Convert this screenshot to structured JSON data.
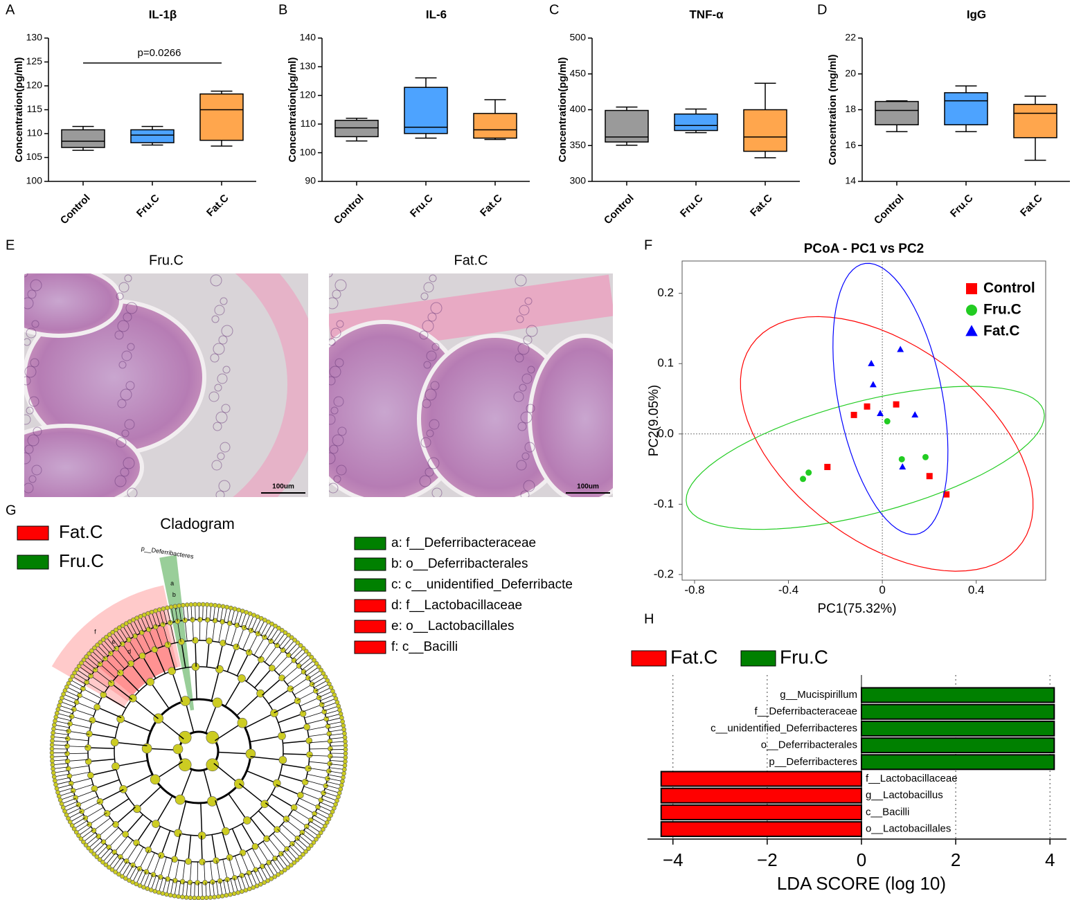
{
  "panel_labels": [
    "A",
    "B",
    "C",
    "D",
    "E",
    "F",
    "G",
    "H"
  ],
  "chart_data": [
    {
      "type": "box",
      "title": "IL-1β",
      "y_label": "Concentration(pg/ml)",
      "categories": [
        "Control",
        "Fru.C",
        "Fat.C"
      ],
      "colors": [
        "#9a9a9a",
        "#4da3ff",
        "#ffa64d"
      ],
      "min": [
        106.5,
        107.6,
        107.4
      ],
      "q1": [
        107.1,
        108.1,
        108.6
      ],
      "median": [
        108.4,
        109.7,
        115
      ],
      "q3": [
        110.8,
        110.8,
        118.3
      ],
      "max": [
        111.5,
        111.5,
        118.9
      ],
      "ylim": [
        100,
        130
      ],
      "yticks": [
        100,
        105,
        110,
        115,
        120,
        125,
        130
      ],
      "annotation": "p=0.0266"
    },
    {
      "type": "box",
      "title": "IL-6",
      "y_label": "Concentration(pg/ml)",
      "categories": [
        "Control",
        "Fru.C",
        "Fat.C"
      ],
      "colors": [
        "#9a9a9a",
        "#4da3ff",
        "#ffa64d"
      ],
      "min": [
        104.1,
        105.1,
        104.6
      ],
      "q1": [
        105.6,
        106.7,
        105.1
      ],
      "median": [
        108.7,
        108.9,
        108
      ],
      "q3": [
        111.3,
        122.8,
        113.7
      ],
      "max": [
        112,
        126.1,
        118.5
      ],
      "ylim": [
        90,
        140
      ],
      "yticks": [
        90,
        100,
        110,
        120,
        130,
        140
      ]
    },
    {
      "type": "box",
      "title": "TNF-α",
      "y_label": "Concentration(pg/ml)",
      "categories": [
        "Control",
        "Fru.C",
        "Fat.C"
      ],
      "colors": [
        "#9a9a9a",
        "#4da3ff",
        "#ffa64d"
      ],
      "min": [
        350.5,
        368,
        333
      ],
      "q1": [
        355,
        371,
        342
      ],
      "median": [
        362,
        378,
        362
      ],
      "q3": [
        399,
        394,
        400
      ],
      "max": [
        403.8,
        401,
        437
      ],
      "ylim": [
        300,
        500
      ],
      "yticks": [
        300,
        350,
        400,
        450,
        500
      ]
    },
    {
      "type": "box",
      "title": "IgG",
      "y_label": "Concentration (mg/ml)",
      "categories": [
        "Control",
        "Fru.C",
        "Fat.C"
      ],
      "colors": [
        "#9a9a9a",
        "#4da3ff",
        "#ffa64d"
      ],
      "min": [
        16.78,
        16.78,
        15.18
      ],
      "q1": [
        17.16,
        17.16,
        16.44
      ],
      "median": [
        17.96,
        18.5,
        17.8
      ],
      "q3": [
        18.46,
        18.95,
        18.3
      ],
      "max": [
        18.5,
        19.33,
        18.76
      ],
      "ylim": [
        14,
        22
      ],
      "yticks": [
        14,
        16,
        18,
        20,
        22
      ]
    },
    {
      "type": "scatter",
      "title": "PCoA - PC1 vs PC2",
      "x_label": "PC1(75.32%)",
      "y_label": "PC2(9.05%)",
      "xlim": [
        -0.853,
        0.696
      ],
      "ylim": [
        -0.208,
        0.246
      ],
      "xticks": [
        -0.8,
        -0.4,
        0,
        0.4
      ],
      "yticks": [
        -0.2,
        -0.1,
        {
          "value": 0,
          "label": "0.0"
        },
        0.1,
        0.2
      ],
      "legend": "upper right",
      "series": [
        {
          "name": "Control",
          "color": "#ff0000",
          "marker": "square",
          "x": [
            -0.121,
            -0.065,
            0.059,
            -0.234,
            0.201,
            0.273
          ],
          "y": [
            0.027,
            0.039,
            0.042,
            -0.047,
            -0.06,
            -0.086
          ]
        },
        {
          "name": "Fru.C",
          "color": "#22cc22",
          "marker": "circle",
          "x": [
            0.021,
            0.083,
            0.184,
            -0.314,
            -0.338
          ],
          "y": [
            0.018,
            -0.036,
            -0.033,
            -0.055,
            -0.064
          ]
        },
        {
          "name": "Fat.C",
          "color": "#0000ff",
          "marker": "triangle",
          "x": [
            0.077,
            -0.047,
            -0.039,
            -0.009,
            0.139,
            0.086
          ],
          "y": [
            0.12,
            0.1,
            0.07,
            0.029,
            0.027,
            -0.047
          ]
        }
      ]
    },
    {
      "type": "hbar",
      "x_label": "LDA SCORE (log 10)",
      "categories": [
        "g__Mucispirillum",
        "f__Deferribacteraceae",
        "c__unidentified_Deferribacteres",
        "o__Deferribacterales",
        "p__Deferribacteres",
        "f__Lactobacillaceae",
        "g__Lactobacillus",
        "c__Bacilli",
        "o__Lactobacillales"
      ],
      "xlim": [
        -4.54,
        4.35
      ],
      "xticks": [
        {
          "value": -4,
          "label": "−4"
        },
        {
          "value": -2,
          "label": "−2"
        },
        0,
        2,
        4
      ],
      "series": [
        {
          "name": "Fat.C",
          "color": "#ff0000",
          "values": [
            null,
            null,
            null,
            null,
            null,
            -4.25,
            -4.25,
            -4.25,
            -4.25
          ]
        },
        {
          "name": "Fru.C",
          "color": "#008000",
          "values": [
            4.09,
            4.09,
            4.09,
            4.09,
            4.09,
            null,
            null,
            null,
            null
          ]
        }
      ]
    }
  ],
  "histology": {
    "images": [
      {
        "label": "Fru.C",
        "scale_bar": "100um"
      },
      {
        "label": "Fat.C",
        "scale_bar": "100um"
      }
    ]
  },
  "cladogram": {
    "title": "Cladogram",
    "legend": [
      {
        "name": "Fat.C",
        "color": "#ff0000"
      },
      {
        "name": "Fru.C",
        "color": "#008000"
      }
    ],
    "clade_label": "p__Deferribacteres",
    "tree_letters": [
      "a",
      "b",
      "c",
      "d",
      "e",
      "f"
    ],
    "keys": [
      {
        "label": "a: f__Deferribacteraceae",
        "color": "#008000"
      },
      {
        "label": "b: o__Deferribacterales",
        "color": "#008000"
      },
      {
        "label": "c: c__unidentified_Deferribacte",
        "color": "#008000"
      },
      {
        "label": "d: f__Lactobacillaceae",
        "color": "#ff0000"
      },
      {
        "label": "e: o__Lactobacillales",
        "color": "#ff0000"
      },
      {
        "label": "f: c__Bacilli",
        "color": "#ff0000"
      }
    ]
  }
}
